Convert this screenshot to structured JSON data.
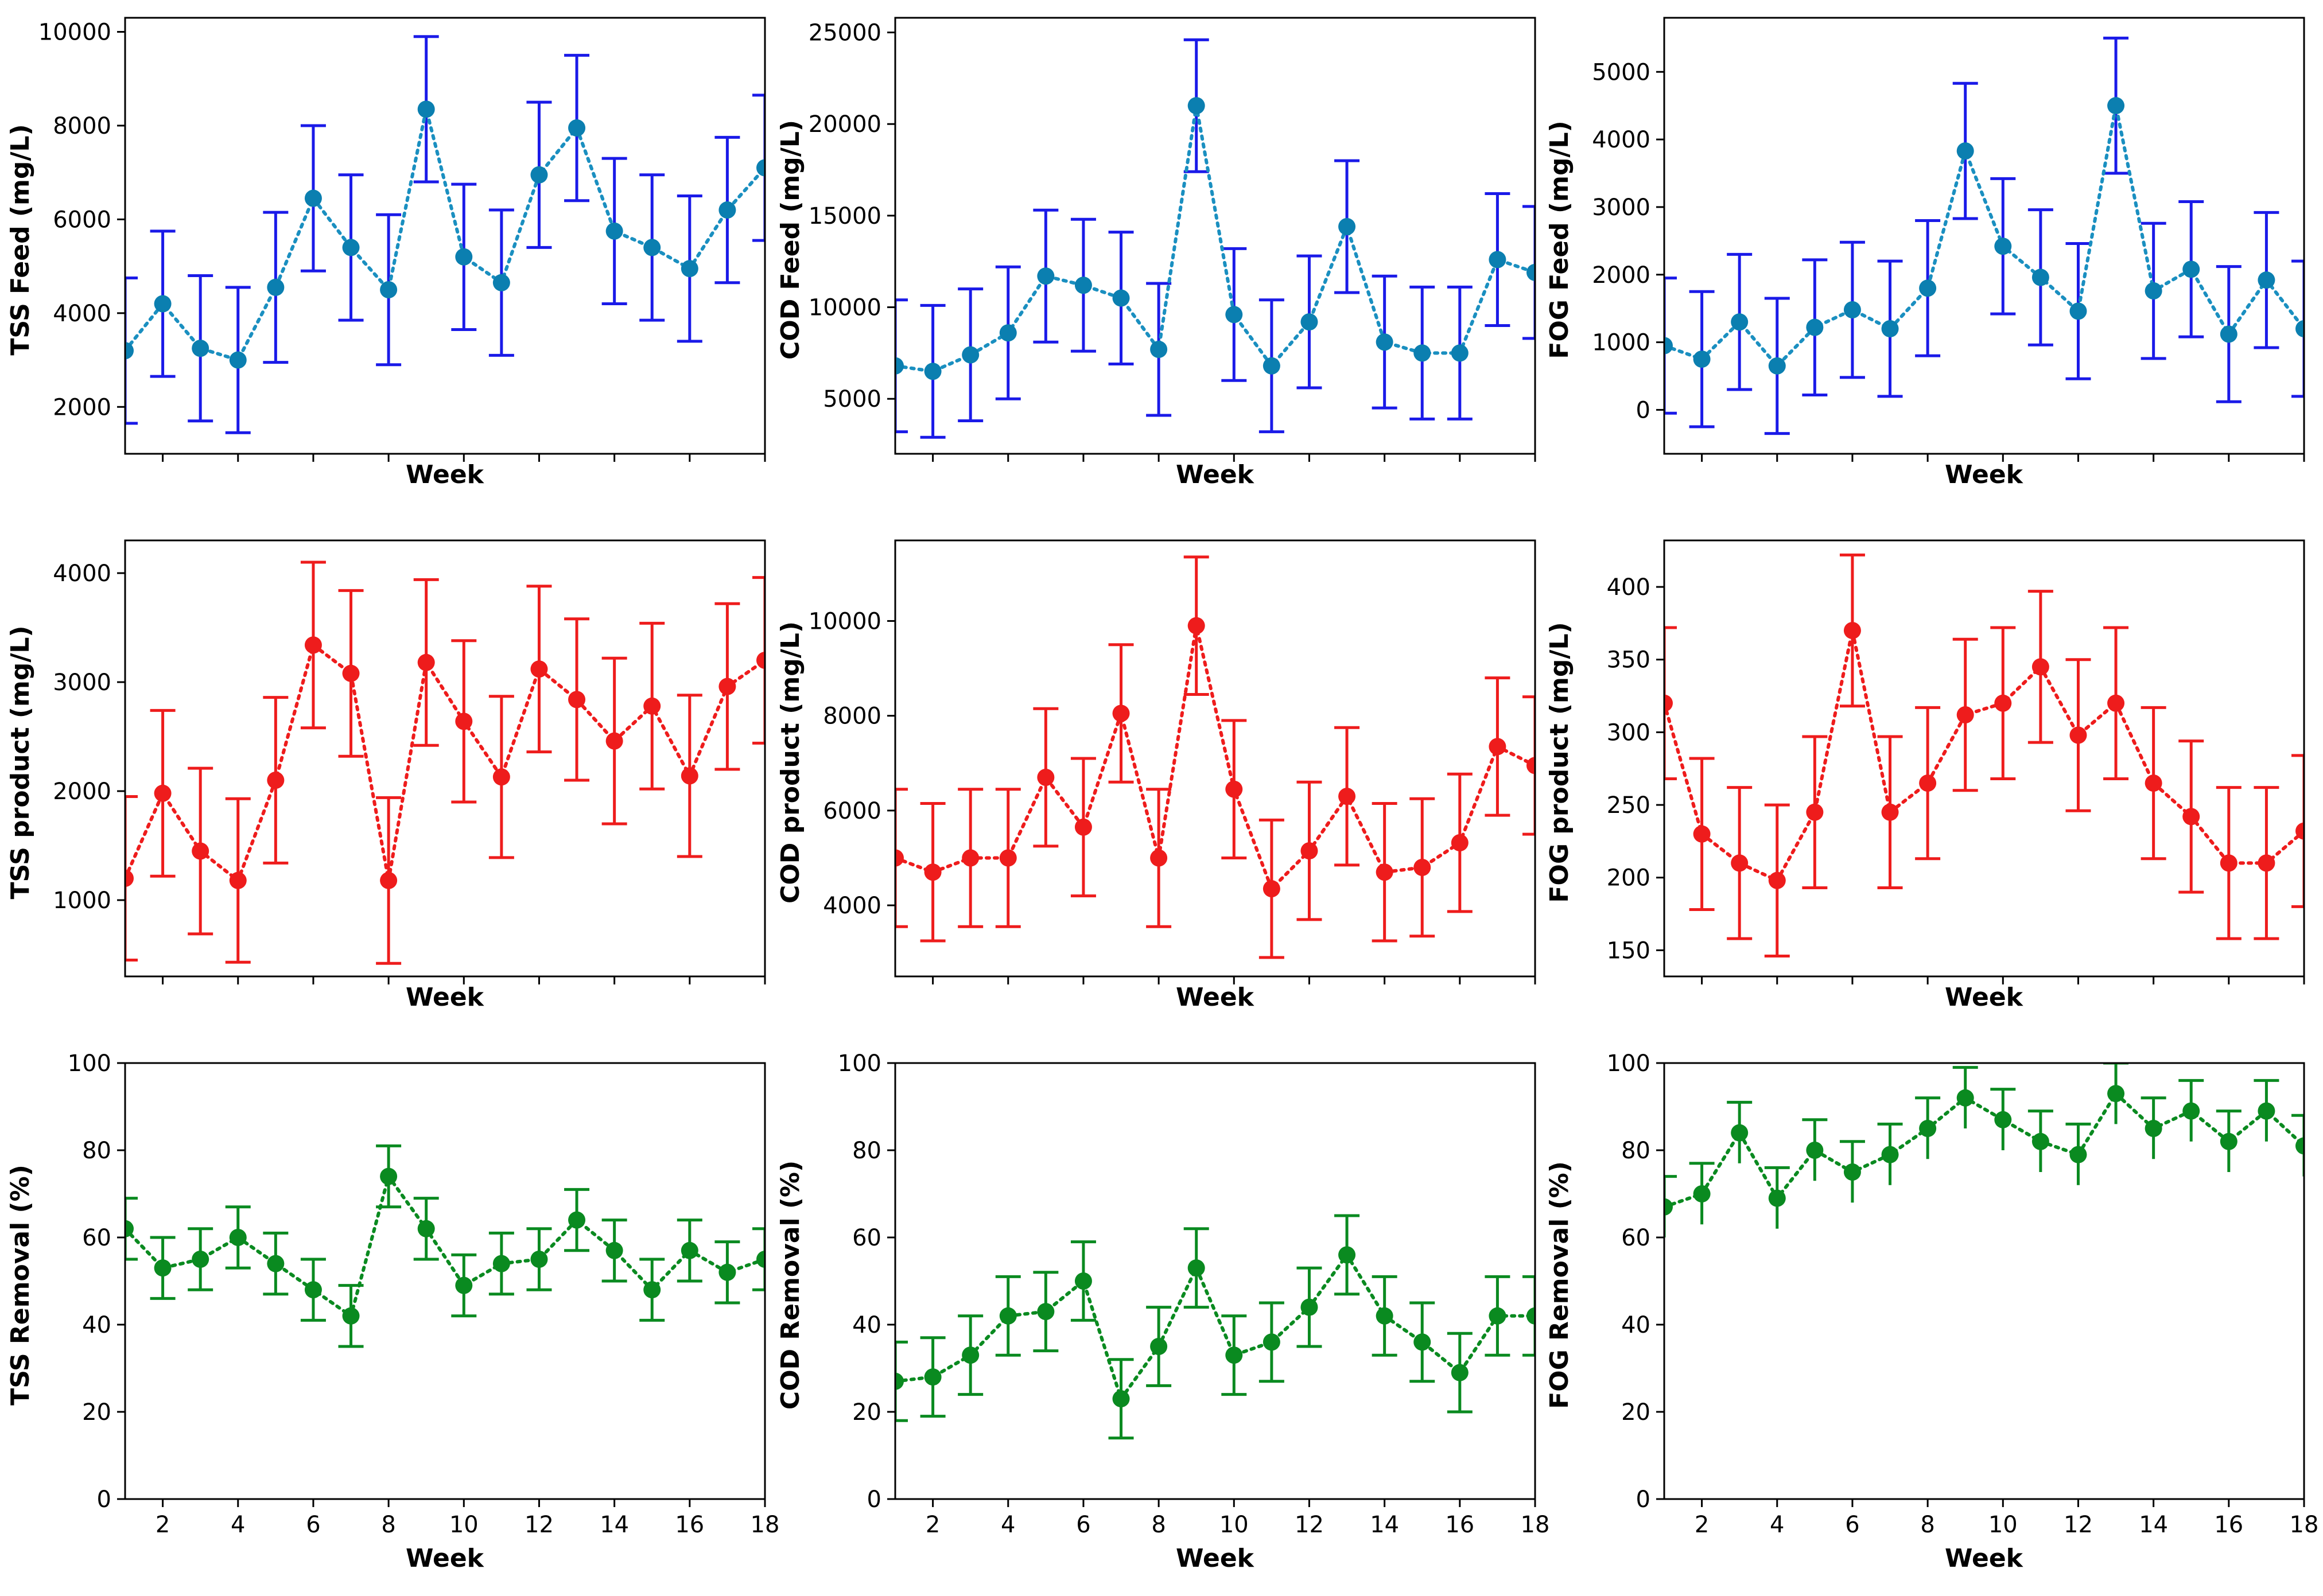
{
  "figure": {
    "x_axis_label": "Week"
  },
  "colors": {
    "feed_line": "#1a8fc0",
    "feed_marker": "#0b7fb0",
    "feed_errbar": "#1a1ae8",
    "product": "#ee1c1c",
    "removal": "#0a8a20"
  },
  "chart_data": [
    {
      "type": "scatter",
      "id": "tss-feed",
      "ylabel": "TSS Feed (mg/L)",
      "xlabel": "Week",
      "xlim": [
        1,
        18
      ],
      "ylim": [
        1000,
        10300
      ],
      "x_ticks": [],
      "y_ticks": [
        2000,
        4000,
        6000,
        8000,
        10000
      ],
      "color_key": "feed",
      "error_style": "symmetric",
      "x": [
        1,
        2,
        3,
        4,
        5,
        6,
        7,
        8,
        9,
        10,
        11,
        12,
        13,
        14,
        15,
        16,
        17,
        18
      ],
      "values": [
        3200,
        4200,
        3250,
        3000,
        4550,
        6450,
        5400,
        4500,
        8350,
        5200,
        4650,
        6950,
        7950,
        5750,
        5400,
        4950,
        6200,
        7100
      ],
      "errors": [
        1550,
        1550,
        1550,
        1550,
        1600,
        1550,
        1550,
        1600,
        1550,
        1550,
        1550,
        1550,
        1550,
        1550,
        1550,
        1550,
        1550,
        1550
      ]
    },
    {
      "type": "scatter",
      "id": "cod-feed",
      "ylabel": "COD Feed (mg/L)",
      "xlabel": "Week",
      "xlim": [
        1,
        18
      ],
      "ylim": [
        2000,
        25800
      ],
      "x_ticks": [],
      "y_ticks": [
        5000,
        10000,
        15000,
        20000,
        25000
      ],
      "color_key": "feed",
      "error_style": "symmetric",
      "x": [
        1,
        2,
        3,
        4,
        5,
        6,
        7,
        8,
        9,
        10,
        11,
        12,
        13,
        14,
        15,
        16,
        17,
        18
      ],
      "values": [
        6800,
        6500,
        7400,
        8600,
        11700,
        11200,
        10500,
        7700,
        21000,
        9600,
        6800,
        9200,
        14400,
        8100,
        7500,
        7500,
        12600,
        11900
      ],
      "errors": [
        3600,
        3600,
        3600,
        3600,
        3600,
        3600,
        3600,
        3600,
        3600,
        3600,
        3600,
        3600,
        3600,
        3600,
        3600,
        3600,
        3600,
        3600
      ]
    },
    {
      "type": "scatter",
      "id": "fog-feed",
      "ylabel": "FOG Feed (mg/L)",
      "xlabel": "Week",
      "xlim": [
        1,
        18
      ],
      "ylim": [
        -650,
        5800
      ],
      "x_ticks": [],
      "y_ticks": [
        0,
        1000,
        2000,
        3000,
        4000,
        5000
      ],
      "color_key": "feed",
      "error_style": "symmetric",
      "x": [
        1,
        2,
        3,
        4,
        5,
        6,
        7,
        8,
        9,
        10,
        11,
        12,
        13,
        14,
        15,
        16,
        17,
        18
      ],
      "values": [
        950,
        750,
        1300,
        650,
        1220,
        1480,
        1200,
        1800,
        3830,
        2420,
        1960,
        1460,
        4500,
        1760,
        2080,
        1120,
        1920,
        1200
      ],
      "errors": [
        1000,
        1000,
        1000,
        1000,
        1000,
        1000,
        1000,
        1000,
        1000,
        1000,
        1000,
        1000,
        1000,
        1000,
        1000,
        1000,
        1000,
        1000
      ]
    },
    {
      "type": "scatter",
      "id": "tss-product",
      "ylabel": "TSS product (mg/L)",
      "xlabel": "Week",
      "xlim": [
        1,
        18
      ],
      "ylim": [
        300,
        4300
      ],
      "x_ticks": [],
      "y_ticks": [
        1000,
        2000,
        3000,
        4000
      ],
      "color_key": "product",
      "error_style": "symmetric",
      "x": [
        1,
        2,
        3,
        4,
        5,
        6,
        7,
        8,
        9,
        10,
        11,
        12,
        13,
        14,
        15,
        16,
        17,
        18
      ],
      "values": [
        1200,
        1980,
        1450,
        1180,
        2100,
        3340,
        3080,
        1180,
        3180,
        2640,
        2130,
        3120,
        2840,
        2460,
        2780,
        2140,
        2960,
        3200
      ],
      "errors": [
        750,
        760,
        760,
        750,
        760,
        760,
        760,
        760,
        760,
        740,
        740,
        760,
        740,
        760,
        760,
        740,
        760,
        760
      ]
    },
    {
      "type": "scatter",
      "id": "cod-product",
      "ylabel": "COD product (mg/L)",
      "xlabel": "Week",
      "xlim": [
        1,
        18
      ],
      "ylim": [
        2500,
        11700
      ],
      "x_ticks": [],
      "y_ticks": [
        4000,
        6000,
        8000,
        10000
      ],
      "color_key": "product",
      "error_style": "symmetric",
      "x": [
        1,
        2,
        3,
        4,
        5,
        6,
        7,
        8,
        9,
        10,
        11,
        12,
        13,
        14,
        15,
        16,
        17,
        18
      ],
      "values": [
        5000,
        4700,
        5000,
        5000,
        6700,
        5650,
        8050,
        5000,
        9900,
        6450,
        4350,
        5150,
        6300,
        4700,
        4800,
        5320,
        7350,
        6950
      ],
      "errors": [
        1450,
        1450,
        1450,
        1450,
        1450,
        1450,
        1450,
        1450,
        1450,
        1450,
        1450,
        1450,
        1450,
        1450,
        1450,
        1450,
        1450,
        1450
      ]
    },
    {
      "type": "scatter",
      "id": "fog-product",
      "ylabel": "FOG product (mg/L)",
      "xlabel": "Week",
      "xlim": [
        1,
        18
      ],
      "ylim": [
        132,
        432
      ],
      "x_ticks": [],
      "y_ticks": [
        150,
        200,
        250,
        300,
        350,
        400
      ],
      "color_key": "product",
      "error_style": "symmetric",
      "x": [
        1,
        2,
        3,
        4,
        5,
        6,
        7,
        8,
        9,
        10,
        11,
        12,
        13,
        14,
        15,
        16,
        17,
        18
      ],
      "values": [
        320,
        230,
        210,
        198,
        245,
        370,
        245,
        265,
        312,
        320,
        345,
        298,
        320,
        265,
        242,
        210,
        210,
        232
      ],
      "errors": [
        52,
        52,
        52,
        52,
        52,
        52,
        52,
        52,
        52,
        52,
        52,
        52,
        52,
        52,
        52,
        52,
        52,
        52
      ]
    },
    {
      "type": "scatter",
      "id": "tss-removal",
      "ylabel": "TSS Removal (%)",
      "xlabel": "Week",
      "xlim": [
        1,
        18
      ],
      "ylim": [
        0,
        100
      ],
      "x_ticks": [
        2,
        4,
        6,
        8,
        10,
        12,
        14,
        16,
        18
      ],
      "y_ticks": [
        0,
        20,
        40,
        60,
        80,
        100
      ],
      "color_key": "removal",
      "error_style": "symmetric",
      "x": [
        1,
        2,
        3,
        4,
        5,
        6,
        7,
        8,
        9,
        10,
        11,
        12,
        13,
        14,
        15,
        16,
        17,
        18
      ],
      "values": [
        62,
        53,
        55,
        60,
        54,
        48,
        42,
        74,
        62,
        49,
        54,
        55,
        64,
        57,
        48,
        57,
        52,
        55
      ],
      "errors": [
        7,
        7,
        7,
        7,
        7,
        7,
        7,
        7,
        7,
        7,
        7,
        7,
        7,
        7,
        7,
        7,
        7,
        7
      ]
    },
    {
      "type": "scatter",
      "id": "cod-removal",
      "ylabel": "COD Removal (%)",
      "xlabel": "Week",
      "xlim": [
        1,
        18
      ],
      "ylim": [
        0,
        100
      ],
      "x_ticks": [
        2,
        4,
        6,
        8,
        10,
        12,
        14,
        16,
        18
      ],
      "y_ticks": [
        0,
        20,
        40,
        60,
        80,
        100
      ],
      "color_key": "removal",
      "error_style": "symmetric",
      "x": [
        1,
        2,
        3,
        4,
        5,
        6,
        7,
        8,
        9,
        10,
        11,
        12,
        13,
        14,
        15,
        16,
        17,
        18
      ],
      "values": [
        27,
        28,
        33,
        42,
        43,
        50,
        23,
        35,
        53,
        33,
        36,
        44,
        56,
        42,
        36,
        29,
        42,
        42
      ],
      "errors": [
        9,
        9,
        9,
        9,
        9,
        9,
        9,
        9,
        9,
        9,
        9,
        9,
        9,
        9,
        9,
        9,
        9,
        9
      ]
    },
    {
      "type": "scatter",
      "id": "fog-removal",
      "ylabel": "FOG Removal (%)",
      "xlabel": "Week",
      "xlim": [
        1,
        18
      ],
      "ylim": [
        0,
        100
      ],
      "x_ticks": [
        2,
        4,
        6,
        8,
        10,
        12,
        14,
        16,
        18
      ],
      "y_ticks": [
        0,
        20,
        40,
        60,
        80,
        100
      ],
      "color_key": "removal",
      "error_style": "upper_cap_only",
      "x": [
        1,
        2,
        3,
        4,
        5,
        6,
        7,
        8,
        9,
        10,
        11,
        12,
        13,
        14,
        15,
        16,
        17,
        18
      ],
      "values": [
        67,
        70,
        84,
        69,
        80,
        75,
        79,
        85,
        92,
        87,
        82,
        79,
        93,
        85,
        89,
        82,
        89,
        81
      ],
      "errors": [
        7,
        7,
        7,
        7,
        7,
        7,
        7,
        7,
        7,
        7,
        7,
        7,
        7,
        7,
        7,
        7,
        7,
        7
      ]
    }
  ]
}
